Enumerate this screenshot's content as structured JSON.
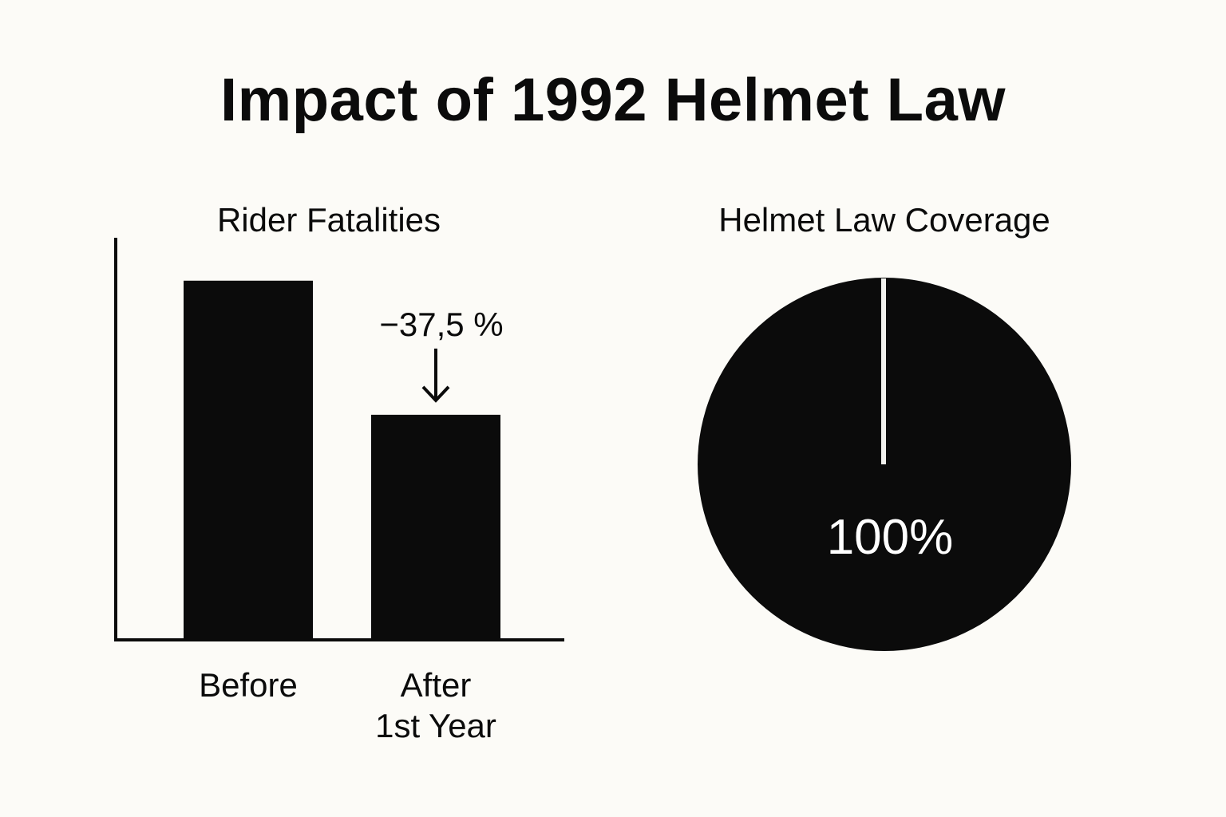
{
  "title": "Impact of 1992 Helmet Law",
  "colors": {
    "background": "#fcfbf7",
    "ink": "#0b0b0b",
    "pie_divider": "#f2f2ee",
    "pie_label": "#ffffff"
  },
  "chart_data": [
    {
      "type": "bar",
      "title": "Rider Fatalities",
      "categories": [
        [
          "Before"
        ],
        [
          "After",
          "1st Year"
        ]
      ],
      "values": [
        100,
        62.5
      ],
      "ylim": [
        0,
        112
      ],
      "ylabel": "",
      "xlabel": "",
      "grid": false,
      "annotation": {
        "text": "−37,5 %",
        "target_category": 1,
        "arrow": "down"
      }
    },
    {
      "type": "pie",
      "title": "Helmet Law Coverage",
      "values": [
        100
      ],
      "slice_label": "100%",
      "grid": false
    }
  ]
}
